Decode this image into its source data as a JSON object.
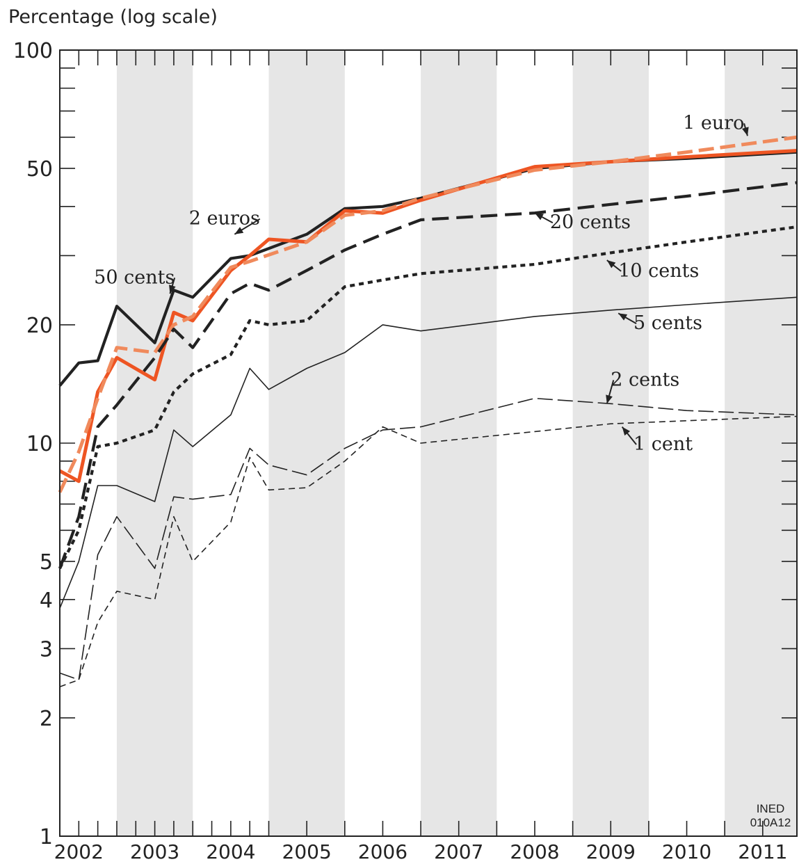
{
  "chart_data": {
    "type": "line",
    "ylabel": "Percentage (log scale)",
    "yscale": "log",
    "ylim": [
      1,
      100
    ],
    "xlim": [
      2001.75,
      2011.45
    ],
    "yticks": [
      {
        "value": 100,
        "label": "100"
      },
      {
        "value": 50,
        "label": "50"
      },
      {
        "value": 20,
        "label": "20"
      },
      {
        "value": 10,
        "label": "10"
      },
      {
        "value": 5,
        "label": "5"
      },
      {
        "value": 4,
        "label": "4"
      },
      {
        "value": 3,
        "label": "3"
      },
      {
        "value": 2,
        "label": "2"
      },
      {
        "value": 1,
        "label": "1"
      }
    ],
    "xticks": [
      {
        "value": 2002,
        "label": "2002"
      },
      {
        "value": 2003,
        "label": "2003"
      },
      {
        "value": 2004,
        "label": "2004"
      },
      {
        "value": 2005,
        "label": "2005"
      },
      {
        "value": 2006,
        "label": "2006"
      },
      {
        "value": 2007,
        "label": "2007"
      },
      {
        "value": 2008,
        "label": "2008"
      },
      {
        "value": 2009,
        "label": "2009"
      },
      {
        "value": 2010,
        "label": "2010"
      },
      {
        "value": 2011,
        "label": "2011"
      }
    ],
    "shaded_bands": [
      [
        2002.5,
        2003.5
      ],
      [
        2004.5,
        2005.5
      ],
      [
        2006.5,
        2007.5
      ],
      [
        2008.5,
        2009.5
      ],
      [
        2010.5,
        2011.45
      ]
    ],
    "grid": false,
    "credit": [
      "INED",
      "010A12"
    ],
    "series": [
      {
        "name": "50 cents",
        "color": "#222222",
        "width": 4.2,
        "dash": "",
        "x": [
          2001.75,
          2002,
          2002.25,
          2002.5,
          2003,
          2003.25,
          2003.5,
          2004,
          2004.25,
          2005,
          2005.5,
          2006,
          2006.5,
          2008,
          2009,
          2010,
          2011.45
        ],
        "y": [
          14,
          16,
          16.2,
          22.3,
          18,
          24.5,
          23.5,
          29.5,
          30,
          34,
          39.5,
          40,
          42,
          50,
          52,
          53,
          55
        ]
      },
      {
        "name": "2 euros",
        "color": "#ee5523",
        "width": 5,
        "dash": "",
        "x": [
          2001.75,
          2002,
          2002.25,
          2002.5,
          2003,
          2003.25,
          2003.5,
          2004,
          2004.25,
          2004.5,
          2005,
          2005.5,
          2006,
          2006.5,
          2008,
          2009,
          2010,
          2011.45
        ],
        "y": [
          8.5,
          8,
          13.5,
          16.5,
          14.5,
          21.5,
          20.5,
          27.5,
          30,
          33,
          32.5,
          39,
          38.5,
          41.5,
          50.5,
          52,
          53.5,
          55.5
        ]
      },
      {
        "name": "1 euro",
        "color": "#f08a5c",
        "width": 5,
        "dash": "22 9",
        "x": [
          2001.75,
          2002,
          2002.25,
          2002.5,
          2003,
          2003.25,
          2003.5,
          2004,
          2004.25,
          2005,
          2005.5,
          2006,
          2006.5,
          2008,
          2009,
          2010,
          2011.45
        ],
        "y": [
          7.5,
          9.5,
          13,
          17.5,
          17,
          20,
          21,
          28,
          29,
          32.5,
          38,
          39,
          42,
          49.5,
          52,
          55,
          60
        ]
      },
      {
        "name": "20 cents",
        "color": "#222222",
        "width": 4.2,
        "dash": "24 11",
        "x": [
          2001.75,
          2002,
          2002.25,
          2002.5,
          2003,
          2003.25,
          2003.5,
          2004,
          2004.25,
          2004.5,
          2005,
          2005.5,
          2006,
          2006.5,
          2008,
          2009,
          2010,
          2011.45
        ],
        "y": [
          4.8,
          6.5,
          11,
          12.5,
          16.5,
          19.5,
          17.5,
          24,
          25.5,
          24.5,
          27.5,
          31,
          34,
          37,
          38.5,
          40.5,
          42.5,
          46
        ]
      },
      {
        "name": "10 cents",
        "color": "#222222",
        "width": 4.2,
        "dash": "7 6",
        "x": [
          2001.75,
          2002,
          2002.25,
          2002.5,
          2003,
          2003.25,
          2003.5,
          2004,
          2004.25,
          2004.5,
          2005,
          2005.5,
          2006,
          2006.5,
          2008,
          2009,
          2010,
          2011.45
        ],
        "y": [
          4.8,
          6,
          9.8,
          10,
          10.8,
          13.5,
          15,
          16.8,
          20.5,
          20,
          20.5,
          25,
          26,
          27,
          28.5,
          30.5,
          32.5,
          35.5
        ]
      },
      {
        "name": "5 cents",
        "color": "#222222",
        "width": 1.6,
        "dash": "",
        "x": [
          2001.75,
          2002,
          2002.25,
          2002.5,
          2003,
          2003.25,
          2003.5,
          2004,
          2004.25,
          2004.5,
          2005,
          2005.5,
          2006,
          2006.5,
          2008,
          2009,
          2010,
          2011.45
        ],
        "y": [
          3.8,
          5,
          7.8,
          7.8,
          7.1,
          10.8,
          9.8,
          11.8,
          15.5,
          13.7,
          15.5,
          17,
          20,
          19.3,
          21,
          21.8,
          22.5,
          23.5
        ]
      },
      {
        "name": "2 cents",
        "color": "#222222",
        "width": 1.6,
        "dash": "22 7",
        "x": [
          2001.75,
          2002,
          2002.25,
          2002.5,
          2003,
          2003.25,
          2003.5,
          2004,
          2004.25,
          2004.5,
          2005,
          2005.5,
          2006,
          2006.5,
          2008,
          2009,
          2010,
          2011.45
        ],
        "y": [
          2.6,
          2.5,
          5.2,
          6.5,
          4.8,
          7.3,
          7.2,
          7.4,
          9.7,
          8.8,
          8.3,
          9.7,
          10.8,
          11,
          13,
          12.6,
          12.1,
          11.8
        ]
      },
      {
        "name": "1 cent",
        "color": "#222222",
        "width": 1.6,
        "dash": "9 6",
        "x": [
          2001.75,
          2002,
          2002.25,
          2002.5,
          2003,
          2003.25,
          2003.5,
          2004,
          2004.25,
          2004.5,
          2005,
          2005.5,
          2006,
          2006.5,
          2008,
          2009,
          2010,
          2011.45
        ],
        "y": [
          2.4,
          2.5,
          3.5,
          4.2,
          4,
          6.5,
          5,
          6.3,
          9.2,
          7.6,
          7.7,
          9,
          11,
          10,
          10.7,
          11.2,
          11.4,
          11.7
        ]
      }
    ],
    "annotations": [
      {
        "text": "1 euro",
        "series": "1 euro",
        "at": [
          2009.95,
          63
        ],
        "point": [
          2010.8,
          60.5
        ]
      },
      {
        "text": "2 euros",
        "series": "2 euros",
        "at": [
          2003.45,
          36
        ],
        "point": [
          2004.05,
          34
        ]
      },
      {
        "text": "50 cents",
        "series": "50 cents",
        "at": [
          2002.2,
          25.5
        ],
        "point": [
          2003.2,
          24
        ]
      },
      {
        "text": "20 cents",
        "series": "20 cents",
        "at": [
          2008.2,
          35.2
        ],
        "point": [
          2008,
          38.5
        ]
      },
      {
        "text": "10 cents",
        "series": "10 cents",
        "at": [
          2009.1,
          26.5
        ],
        "point": [
          2008.95,
          29.2
        ]
      },
      {
        "text": "5 cents",
        "series": "5 cents",
        "at": [
          2009.3,
          19.5
        ],
        "point": [
          2009.1,
          21.4
        ]
      },
      {
        "text": "2 cents",
        "series": "2 cents",
        "at": [
          2009.0,
          14
        ],
        "point": [
          2008.95,
          12.6
        ]
      },
      {
        "text": "1 cent",
        "series": "1 cent",
        "at": [
          2009.3,
          9.6
        ],
        "point": [
          2009.15,
          11
        ]
      }
    ]
  }
}
